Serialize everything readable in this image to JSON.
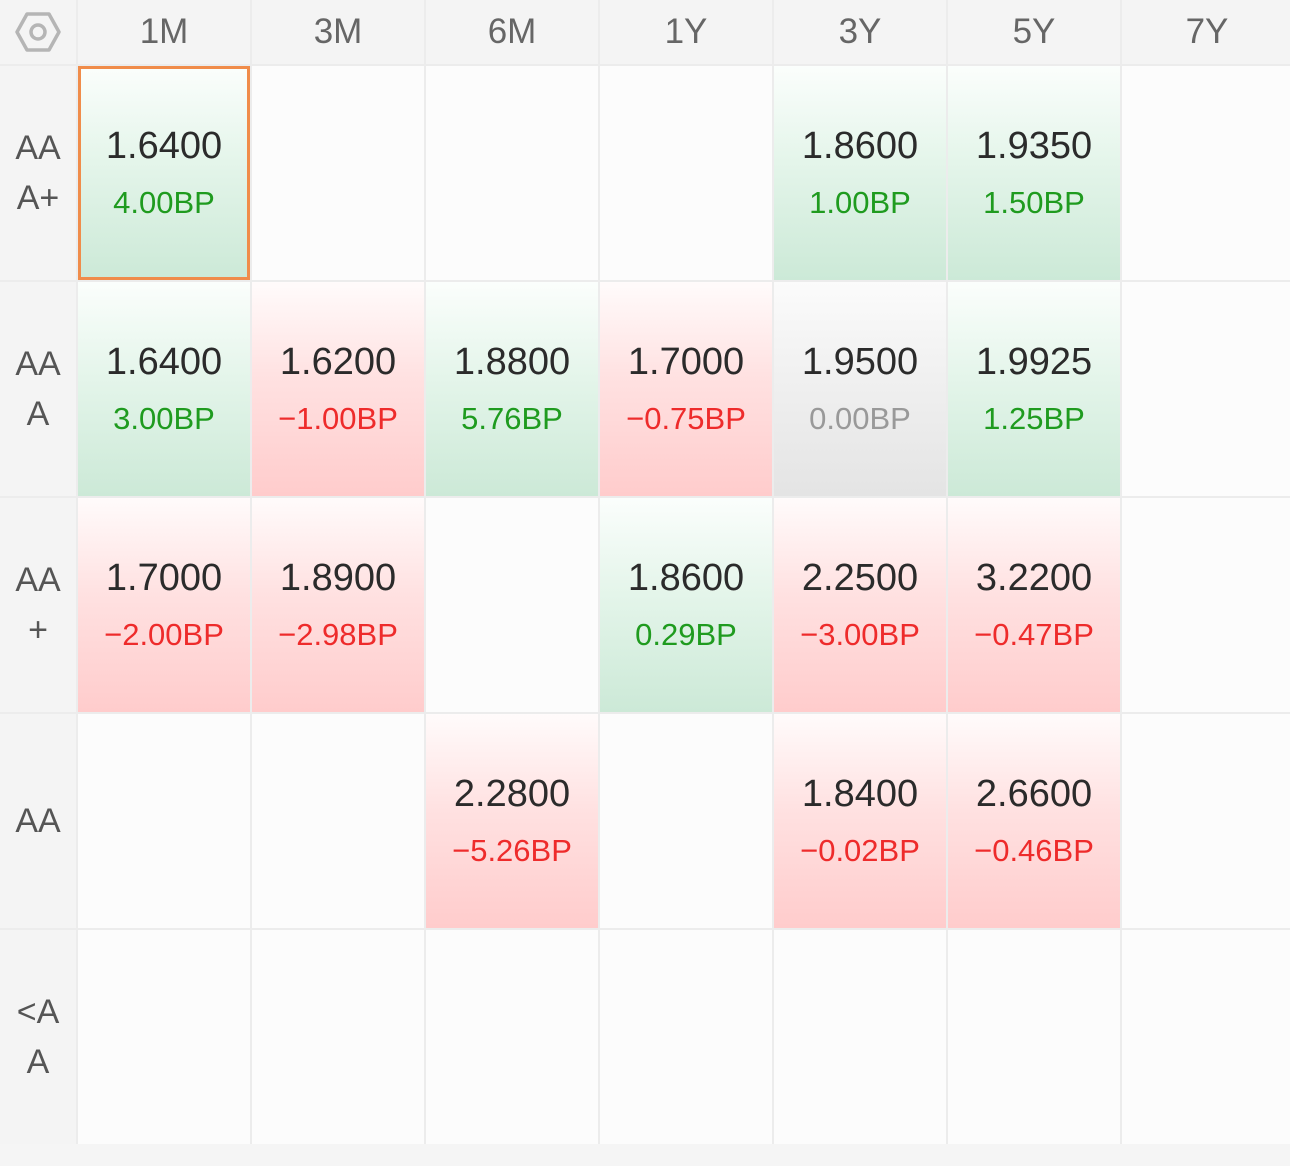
{
  "columns": [
    "1M",
    "3M",
    "6M",
    "1Y",
    "3Y",
    "5Y",
    "7Y"
  ],
  "corner_icon": "settings-hexagon-icon",
  "colors": {
    "up": "#1f9b1f",
    "down": "#ee2b2b",
    "flat": "#999999",
    "selected": "#f08c4a"
  },
  "rows": [
    {
      "label": "AAA+",
      "cells": [
        {
          "rate": "1.6400",
          "change": "4.00BP",
          "trend": "up",
          "selected": true
        },
        null,
        null,
        null,
        {
          "rate": "1.8600",
          "change": "1.00BP",
          "trend": "up"
        },
        {
          "rate": "1.9350",
          "change": "1.50BP",
          "trend": "up"
        },
        null
      ]
    },
    {
      "label": "AAA",
      "cells": [
        {
          "rate": "1.6400",
          "change": "3.00BP",
          "trend": "up"
        },
        {
          "rate": "1.6200",
          "change": "−1.00BP",
          "trend": "down"
        },
        {
          "rate": "1.8800",
          "change": "5.76BP",
          "trend": "up"
        },
        {
          "rate": "1.7000",
          "change": "−0.75BP",
          "trend": "down"
        },
        {
          "rate": "1.9500",
          "change": "0.00BP",
          "trend": "flat"
        },
        {
          "rate": "1.9925",
          "change": "1.25BP",
          "trend": "up"
        },
        null
      ]
    },
    {
      "label": "AA+",
      "cells": [
        {
          "rate": "1.7000",
          "change": "−2.00BP",
          "trend": "down"
        },
        {
          "rate": "1.8900",
          "change": "−2.98BP",
          "trend": "down"
        },
        null,
        {
          "rate": "1.8600",
          "change": "0.29BP",
          "trend": "up"
        },
        {
          "rate": "2.2500",
          "change": "−3.00BP",
          "trend": "down"
        },
        {
          "rate": "3.2200",
          "change": "−0.47BP",
          "trend": "down"
        },
        null
      ]
    },
    {
      "label": "AA",
      "cells": [
        null,
        null,
        {
          "rate": "2.2800",
          "change": "−5.26BP",
          "trend": "down"
        },
        null,
        {
          "rate": "1.8400",
          "change": "−0.02BP",
          "trend": "down"
        },
        {
          "rate": "2.6600",
          "change": "−0.46BP",
          "trend": "down"
        },
        null
      ]
    },
    {
      "label": "<AA",
      "cells": [
        null,
        null,
        null,
        null,
        null,
        null,
        null
      ]
    }
  ]
}
